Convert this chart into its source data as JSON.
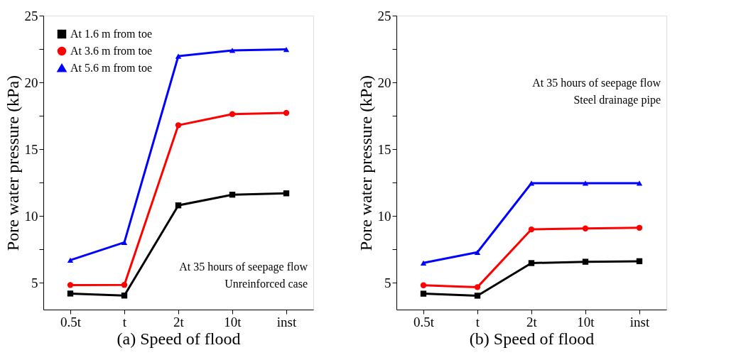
{
  "chart_data": [
    {
      "type": "line",
      "xlabel": "(a)  Speed of flood",
      "ylabel": "Pore water pressure (kPa)",
      "categories": [
        "0.5t",
        "t",
        "2t",
        "10t",
        "inst"
      ],
      "series": [
        {
          "name": "At 1.6 m from toe",
          "color": "#000000",
          "marker": "square",
          "values": [
            4.2,
            4.05,
            10.8,
            11.6,
            11.7
          ]
        },
        {
          "name": "At 3.6 m from toe",
          "color": "#ff0000",
          "marker": "circle",
          "values": [
            4.84,
            4.85,
            16.8,
            17.63,
            17.72
          ]
        },
        {
          "name": "At 5.6 m from toe",
          "color": "#0000ff",
          "marker": "triangle",
          "values": [
            6.7,
            8.03,
            21.97,
            22.4,
            22.47
          ]
        }
      ],
      "ylim": [
        3,
        25
      ],
      "yticks": [
        5,
        {
          "value": 7.5,
          "label": null
        },
        10,
        {
          "value": 12.5,
          "label": null
        },
        15,
        {
          "value": 17.5,
          "label": null
        },
        20,
        {
          "value": 22.5,
          "label": null
        },
        25
      ],
      "legend": "top left",
      "grid": false,
      "line_style": "solid",
      "annotations": [
        "At 35 hours of seepage flow",
        "Unreinforced case"
      ]
    },
    {
      "type": "line",
      "xlabel": "(b)  Speed of flood",
      "ylabel": "Pore water pressure (kPa)",
      "categories": [
        "0.5t",
        "t",
        "2t",
        "10t",
        "inst"
      ],
      "series": [
        {
          "name": "At 1.6 m from toe",
          "color": "#000000",
          "marker": "square",
          "values": [
            4.19,
            4.04,
            6.48,
            6.58,
            6.62
          ]
        },
        {
          "name": "At 3.6 m from toe",
          "color": "#ff0000",
          "marker": "circle",
          "values": [
            4.82,
            4.68,
            9.0,
            9.07,
            9.12
          ]
        },
        {
          "name": "At 5.6 m from toe",
          "color": "#0000ff",
          "marker": "triangle",
          "values": [
            6.49,
            7.29,
            12.46,
            12.46,
            12.46
          ]
        }
      ],
      "ylim": [
        3,
        25
      ],
      "yticks": [
        5,
        {
          "value": 7.5,
          "label": null
        },
        10,
        {
          "value": 12.5,
          "label": null
        },
        15,
        {
          "value": 17.5,
          "label": null
        },
        20,
        {
          "value": 22.5,
          "label": null
        },
        25
      ],
      "legend": "top left",
      "grid": false,
      "line_style": "solid",
      "annotations": [
        "At 35 hours of seepage flow",
        "Steel drainage pipe"
      ]
    }
  ]
}
